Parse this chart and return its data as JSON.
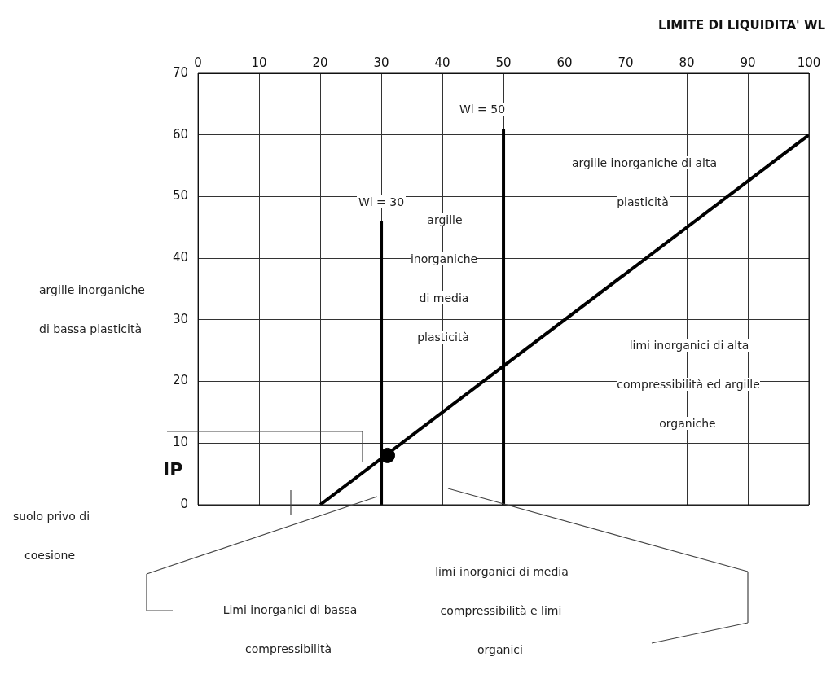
{
  "chart_data": {
    "type": "line",
    "xlabel": "LIMITE DI LIQUIDITA' WL",
    "ylabel": "IP",
    "xlim": [
      0,
      100
    ],
    "xticks": [
      0,
      10,
      20,
      30,
      40,
      50,
      60,
      70,
      80,
      90,
      100
    ],
    "ylim": [
      0,
      70
    ],
    "yticks": [
      0,
      10,
      20,
      30,
      40,
      50,
      60,
      70
    ],
    "grid": true,
    "legend": false,
    "series": [
      {
        "type": "line",
        "color": "#000000",
        "x": [
          20,
          100
        ],
        "values": [
          0,
          60
        ],
        "marker": "none"
      },
      {
        "type": "line",
        "color": "#000000",
        "x": [
          30,
          30
        ],
        "values": [
          0,
          46
        ],
        "marker": "none"
      },
      {
        "type": "line",
        "color": "#000000",
        "x": [
          50,
          50
        ],
        "values": [
          0,
          61
        ],
        "marker": "none"
      },
      {
        "type": "scatter",
        "color": "#000000",
        "x": [
          31
        ],
        "values": [
          8
        ],
        "marker": "circle"
      }
    ],
    "annotations": [
      "Wl = 30",
      "Wl = 50",
      "argille inorganiche di alta plasticità",
      "argille inorganiche di media plasticità",
      "limi inorganici di alta compressibilità ed argille organiche",
      "argille inorganiche di bassa plasticità",
      "suolo privo di coesione",
      "Limi inorganici di bassa compressibilità",
      "limi inorganici di media compressibilità e limi organici"
    ]
  }
}
